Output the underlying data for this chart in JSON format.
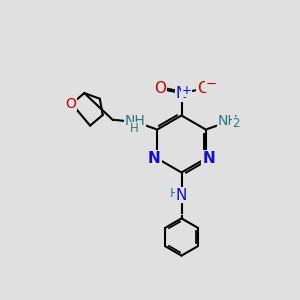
{
  "bg_color": "#e0e0e0",
  "bond_color": "#000000",
  "bond_lw": 1.5,
  "N_color": "#1010cc",
  "NH_color": "#2a7a7a",
  "O_color": "#cc0000",
  "C_color": "#000000",
  "font_size": 10,
  "small_font": 8.5,
  "xlim": [
    0,
    10
  ],
  "ylim": [
    0,
    10
  ],
  "figsize": [
    3.0,
    3.0
  ],
  "dpi": 100
}
